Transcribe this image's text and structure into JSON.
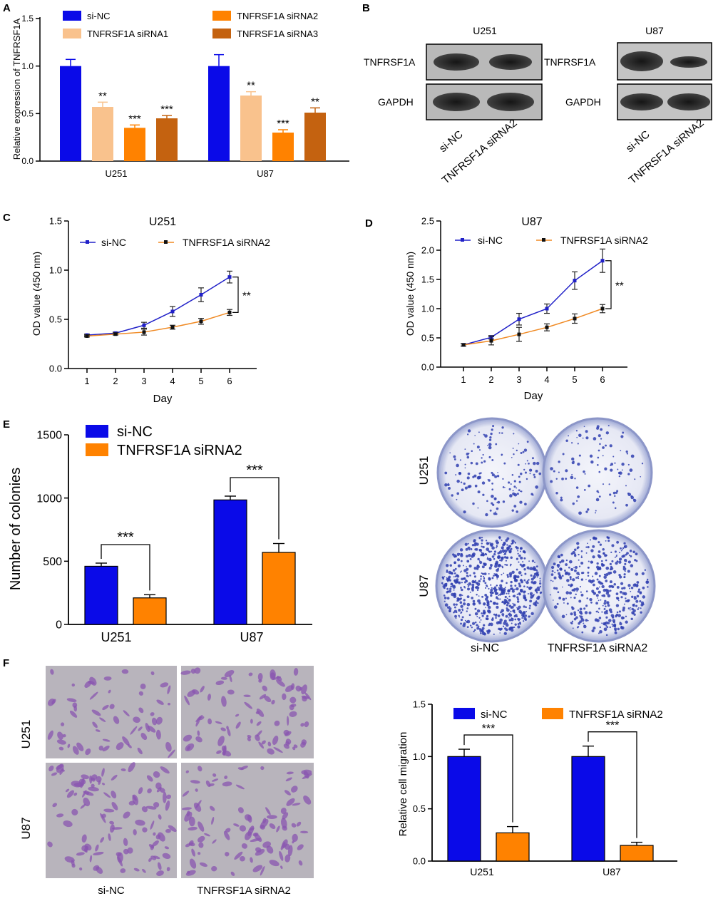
{
  "colors": {
    "si_nc": "#0a0ae8",
    "sirna1": "#f9c28d",
    "sirna2": "#ff8200",
    "sirna3": "#c46210",
    "line_sinc": "#2020c8",
    "line_sirna2": "#f08a24",
    "blot_band": "#2a2a2a",
    "blot_bg": "#b9b9b9",
    "colony": "#3040b0",
    "transwell_bg": "#b8b4bc",
    "transwell_cell": "#8a55b0"
  },
  "chart_data": [
    {
      "panel": "A",
      "type": "bar",
      "ylabel": "Relative expression of TNFRSF1A",
      "ylim": [
        0,
        1.5
      ],
      "yticks": [
        "0.0",
        "0.5",
        "1.0",
        "1.5"
      ],
      "categories": [
        "U251",
        "U87"
      ],
      "legend": [
        "si-NC",
        "TNFRSF1A siRNA1",
        "TNFRSF1A siRNA2",
        "TNFRSF1A siRNA3"
      ],
      "series": [
        {
          "name": "si-NC",
          "values": [
            1.0,
            1.0
          ],
          "errors": [
            0.07,
            0.12
          ],
          "stars": [
            "",
            ""
          ]
        },
        {
          "name": "TNFRSF1A siRNA1",
          "values": [
            0.57,
            0.69
          ],
          "errors": [
            0.05,
            0.04
          ],
          "stars": [
            "**",
            "**"
          ]
        },
        {
          "name": "TNFRSF1A siRNA2",
          "values": [
            0.35,
            0.3
          ],
          "errors": [
            0.03,
            0.03
          ],
          "stars": [
            "***",
            "***"
          ]
        },
        {
          "name": "TNFRSF1A siRNA3",
          "values": [
            0.45,
            0.51
          ],
          "errors": [
            0.03,
            0.05
          ],
          "stars": [
            "***",
            "**"
          ]
        }
      ]
    },
    {
      "panel": "C",
      "type": "line",
      "title": "U251",
      "xlabel": "Day",
      "ylabel": "OD value (450 nm)",
      "ylim": [
        0,
        1.5
      ],
      "yticks": [
        "0.0",
        "0.5",
        "1.0",
        "1.5"
      ],
      "x": [
        1,
        2,
        3,
        4,
        5,
        6
      ],
      "series": [
        {
          "name": "si-NC",
          "values": [
            0.34,
            0.36,
            0.44,
            0.58,
            0.75,
            0.93
          ],
          "errors": [
            0.01,
            0.01,
            0.03,
            0.05,
            0.07,
            0.06
          ]
        },
        {
          "name": "TNFRSF1A siRNA2",
          "values": [
            0.33,
            0.35,
            0.37,
            0.42,
            0.48,
            0.57
          ],
          "errors": [
            0.01,
            0.01,
            0.03,
            0.02,
            0.03,
            0.03
          ]
        }
      ],
      "sig": "**"
    },
    {
      "panel": "D",
      "type": "line",
      "title": "U87",
      "xlabel": "Day",
      "ylabel": "OD value (450 nm)",
      "ylim": [
        0,
        2.5
      ],
      "yticks": [
        "0.0",
        "0.5",
        "1.0",
        "1.5",
        "2.0",
        "2.5"
      ],
      "x": [
        1,
        2,
        3,
        4,
        5,
        6
      ],
      "series": [
        {
          "name": "si-NC",
          "values": [
            0.38,
            0.51,
            0.82,
            1.0,
            1.48,
            1.82
          ],
          "errors": [
            0.02,
            0.03,
            0.1,
            0.08,
            0.15,
            0.2
          ]
        },
        {
          "name": "TNFRSF1A siRNA2",
          "values": [
            0.38,
            0.45,
            0.56,
            0.68,
            0.83,
            1.0
          ],
          "errors": [
            0.02,
            0.07,
            0.12,
            0.06,
            0.08,
            0.07
          ]
        }
      ],
      "sig": "**"
    },
    {
      "panel": "E",
      "type": "bar",
      "ylabel": "Number of colonies",
      "ylim": [
        0,
        1500
      ],
      "yticks": [
        "0",
        "500",
        "1000",
        "1500"
      ],
      "categories": [
        "U251",
        "U87"
      ],
      "legend": [
        "si-NC",
        "TNFRSF1A siRNA2"
      ],
      "series": [
        {
          "name": "si-NC",
          "values": [
            460,
            985
          ],
          "errors": [
            25,
            30
          ]
        },
        {
          "name": "TNFRSF1A siRNA2",
          "values": [
            210,
            570
          ],
          "errors": [
            25,
            70
          ]
        }
      ],
      "sig": [
        "***",
        "***"
      ]
    },
    {
      "panel": "F",
      "type": "bar",
      "ylabel": "Relative cell migration",
      "ylim": [
        0,
        1.5
      ],
      "yticks": [
        "0.0",
        "0.5",
        "1.0",
        "1.5"
      ],
      "categories": [
        "U251",
        "U87"
      ],
      "legend": [
        "si-NC",
        "TNFRSF1A siRNA2"
      ],
      "series": [
        {
          "name": "si-NC",
          "values": [
            1.0,
            1.0
          ],
          "errors": [
            0.07,
            0.1
          ]
        },
        {
          "name": "TNFRSF1A siRNA2",
          "values": [
            0.27,
            0.15
          ],
          "errors": [
            0.06,
            0.03
          ]
        }
      ],
      "sig": [
        "***",
        "***"
      ]
    }
  ],
  "panel_labels": [
    "A",
    "B",
    "C",
    "D",
    "E",
    "F"
  ],
  "panel_b": {
    "cells": [
      "U251",
      "U87"
    ],
    "rows": [
      "TNFRSF1A",
      "GAPDH"
    ],
    "lanes": [
      "si-NC",
      "TNFRSF1A siRNA2"
    ]
  },
  "panel_e_images": {
    "rows": [
      "U251",
      "U87"
    ],
    "cols": [
      "si-NC",
      "TNFRSF1A siRNA2"
    ]
  },
  "panel_f_images": {
    "rows": [
      "U251",
      "U87"
    ],
    "cols": [
      "si-NC",
      "TNFRSF1A siRNA2"
    ]
  }
}
